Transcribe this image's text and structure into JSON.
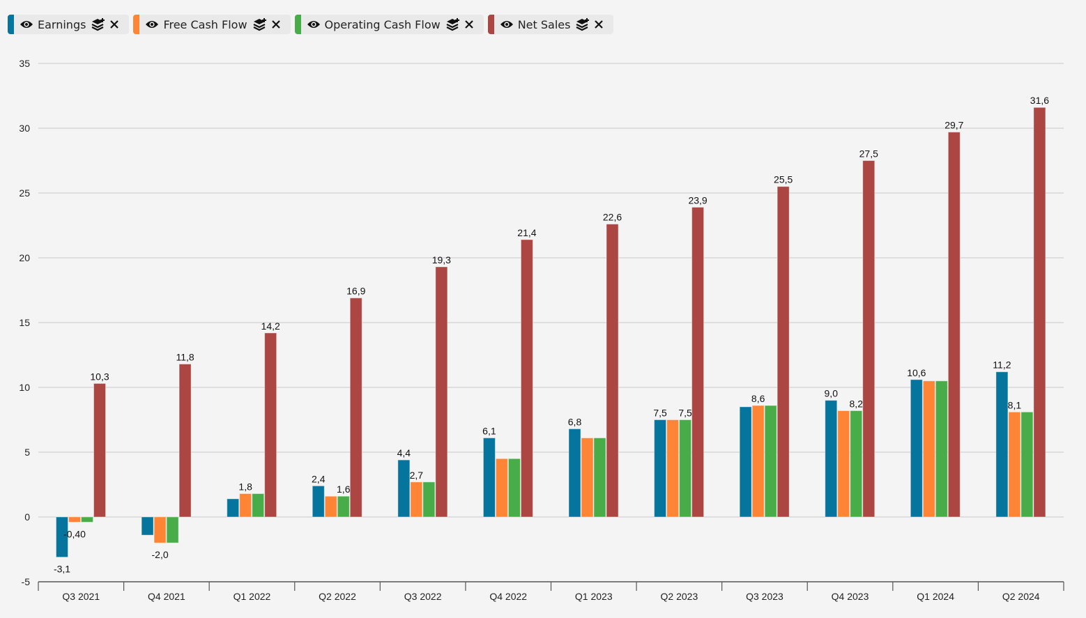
{
  "chart_data": {
    "type": "bar",
    "title": "",
    "xlabel": "",
    "ylabel": "",
    "ylim": [
      -5,
      35
    ],
    "yticks": [
      "-5",
      "0",
      "5",
      "10",
      "15",
      "20",
      "25",
      "30",
      "35"
    ],
    "grid": true,
    "legend_position": "top-left",
    "categories": [
      "Q3 2021",
      "Q4 2021",
      "Q1 2022",
      "Q2 2022",
      "Q3 2022",
      "Q4 2022",
      "Q1 2023",
      "Q2 2023",
      "Q3 2023",
      "Q4 2023",
      "Q1 2024",
      "Q2 2024"
    ],
    "series": [
      {
        "name": "Earnings",
        "color": "#06759e",
        "values": [
          -3.1,
          -1.4,
          1.4,
          2.4,
          4.4,
          6.1,
          6.8,
          7.5,
          8.5,
          9.0,
          10.6,
          11.2
        ],
        "labels": [
          "-3,1",
          null,
          null,
          "2,4",
          "4,4",
          "6,1",
          "6,8",
          "7,5",
          null,
          "9,0",
          "10,6",
          "11,2"
        ]
      },
      {
        "name": "Free Cash Flow",
        "color": "#fe8436",
        "values": [
          -0.4,
          -2.0,
          1.8,
          1.6,
          2.7,
          4.5,
          6.1,
          7.5,
          8.6,
          8.2,
          10.5,
          8.1
        ],
        "labels": [
          "-0,40",
          "-2,0",
          "1,8",
          null,
          "2,7",
          null,
          null,
          null,
          "8,6",
          null,
          null,
          "8,1"
        ]
      },
      {
        "name": "Operating Cash Flow",
        "color": "#48ad48",
        "values": [
          -0.4,
          -2.0,
          1.8,
          1.6,
          2.7,
          4.5,
          6.1,
          7.5,
          8.6,
          8.2,
          10.5,
          8.1
        ],
        "labels": [
          null,
          null,
          null,
          "1,6",
          null,
          null,
          null,
          "7,5",
          null,
          "8,2",
          null,
          null
        ]
      },
      {
        "name": "Net Sales",
        "color": "#ab4643",
        "values": [
          10.3,
          11.8,
          14.2,
          16.9,
          19.3,
          21.4,
          22.6,
          23.9,
          25.5,
          27.5,
          29.7,
          31.6
        ],
        "labels": [
          "10,3",
          "11,8",
          "14,2",
          "16,9",
          "19,3",
          "21,4",
          "22,6",
          "23,9",
          "25,5",
          "27,5",
          "29,7",
          "31,6"
        ]
      }
    ]
  },
  "legend_icons": {
    "visibility": "eye-icon",
    "stack": "layers-plus-icon",
    "remove": "close-icon"
  }
}
